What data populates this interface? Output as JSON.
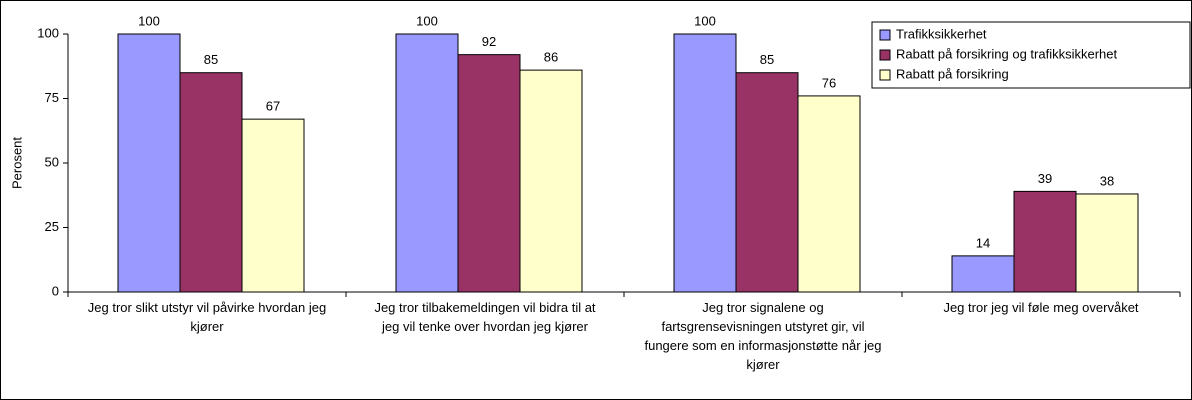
{
  "chart_data": {
    "type": "bar",
    "y_label": "Perosent",
    "categories": [
      "Jeg tror slikt utstyr vil påvirke hvordan jeg kjører",
      "Jeg tror tilbakemeldingen vil bidra til at jeg vil tenke over hvordan jeg kjører",
      "Jeg tror signalene og fartsgrensevisningen utstyret gir, vil fungere som en informasjonstøtte når jeg kjører",
      "Jeg tror jeg vil føle meg overvåket"
    ],
    "series": [
      {
        "name": "Trafikksikkerhet",
        "color": "#9999ff",
        "values": [
          100,
          100,
          100,
          14
        ]
      },
      {
        "name": "Rabatt på forsikring og trafikksikkerhet",
        "color": "#993366",
        "values": [
          85,
          92,
          85,
          39
        ]
      },
      {
        "name": "Rabatt på forsikring",
        "color": "#ffffcc",
        "values": [
          67,
          86,
          76,
          38
        ]
      }
    ],
    "ylim": [
      0,
      100
    ],
    "yticks": [
      0,
      25,
      50,
      75,
      100
    ],
    "grid": false,
    "legend": "top-right"
  }
}
